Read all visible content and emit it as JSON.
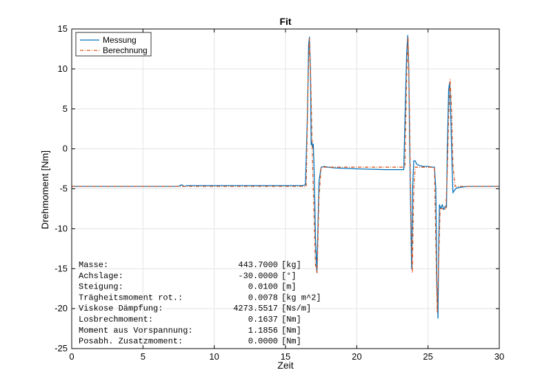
{
  "chart_data": {
    "type": "line",
    "title": "Fit",
    "xlabel": "Zeit",
    "ylabel": "Drehmoment [Nm]",
    "xlim": [
      0,
      30
    ],
    "ylim": [
      -25,
      15
    ],
    "xticks": [
      0,
      5,
      10,
      15,
      20,
      25,
      30
    ],
    "yticks": [
      15,
      10,
      5,
      0,
      -5,
      -10,
      -15,
      -20,
      -25
    ],
    "grid": true,
    "legend_position": "top-left",
    "series": [
      {
        "name": "Messung",
        "color": "#0072BD",
        "style": "solid",
        "x": [
          0,
          7.5,
          7.7,
          7.9,
          8.1,
          16.2,
          16.4,
          16.55,
          16.62,
          16.68,
          16.75,
          16.8,
          16.85,
          16.9,
          16.95,
          17.0,
          17.05,
          17.1,
          17.2,
          17.35,
          17.5,
          17.7,
          18.0,
          18.5,
          20.0,
          22.0,
          23.0,
          23.3,
          23.4,
          23.5,
          23.58,
          23.65,
          23.7,
          23.78,
          23.85,
          23.92,
          24.0,
          24.1,
          24.2,
          24.4,
          24.7,
          25.0,
          25.3,
          25.45,
          25.55,
          25.62,
          25.7,
          25.75,
          25.8,
          25.9,
          26.0,
          26.1,
          26.2,
          26.3,
          26.35,
          26.45,
          26.52,
          26.6,
          26.7,
          26.75,
          26.85,
          27.0,
          27.3,
          27.8,
          28.5,
          30
        ],
        "y": [
          -4.7,
          -4.7,
          -4.5,
          -4.7,
          -4.6,
          -4.6,
          -4.5,
          5.0,
          13.0,
          14.0,
          10.0,
          0.5,
          0.8,
          0.2,
          0.6,
          -2.0,
          -6.0,
          -11.0,
          -15.5,
          -4.0,
          -2.3,
          -2.2,
          -2.3,
          -2.4,
          -2.5,
          -2.6,
          -2.6,
          -2.6,
          5.0,
          12.0,
          14.2,
          10.0,
          2.0,
          -8.0,
          -15.0,
          -5.0,
          -1.5,
          -1.5,
          -1.9,
          -2.1,
          -2.2,
          -2.2,
          -2.3,
          -2.3,
          -5.0,
          -17.0,
          -21.2,
          -12.0,
          -7.0,
          -7.5,
          -7.0,
          -7.6,
          -7.2,
          -7.3,
          0.0,
          7.5,
          8.3,
          4.0,
          -3.0,
          -5.5,
          -5.2,
          -4.9,
          -4.8,
          -4.7,
          -4.7,
          -4.7
        ]
      },
      {
        "name": "Berechnung",
        "color": "#D95319",
        "style": "dashdot",
        "x": [
          0,
          16.2,
          16.45,
          16.58,
          16.68,
          16.78,
          16.9,
          17.0,
          17.1,
          17.22,
          17.35,
          17.5,
          17.7,
          23.0,
          23.38,
          23.5,
          23.6,
          23.7,
          23.8,
          23.9,
          24.0,
          24.1,
          24.2,
          25.3,
          25.45,
          25.55,
          25.65,
          25.75,
          25.85,
          26.0,
          26.25,
          26.35,
          26.45,
          26.55,
          26.65,
          26.75,
          26.9,
          30
        ],
        "y": [
          -4.7,
          -4.7,
          -4.7,
          8.0,
          13.8,
          8.0,
          -2.0,
          -8.0,
          -14.5,
          -15.5,
          -6.0,
          -2.3,
          -2.3,
          -2.3,
          -2.3,
          9.0,
          14.0,
          5.0,
          -9.0,
          -15.5,
          -5.0,
          -2.3,
          -2.3,
          -2.3,
          -2.3,
          -12.0,
          -20.5,
          -14.0,
          -7.5,
          -7.5,
          -7.6,
          -3.0,
          4.0,
          8.7,
          5.0,
          -2.0,
          -4.7,
          -4.7
        ]
      }
    ],
    "annotation_rows": [
      {
        "label": "Masse:",
        "value": "443.7000",
        "unit": "[kg]"
      },
      {
        "label": "Achslage:",
        "value": "-30.0000",
        "unit": "[°]"
      },
      {
        "label": "Steigung:",
        "value": "0.0100",
        "unit": "[m]"
      },
      {
        "label": "Trägheitsmoment rot.:",
        "value": "0.0078",
        "unit": "[kg m^2]"
      },
      {
        "label": "Viskose Dämpfung:",
        "value": "4273.5517",
        "unit": "[Ns/m]"
      },
      {
        "label": "Losbrechmoment:",
        "value": "0.1637",
        "unit": "[Nm]"
      },
      {
        "label": "Moment aus Vorspannung:",
        "value": "1.1856",
        "unit": "[Nm]"
      },
      {
        "label": "Posabh. Zusatzmoment:",
        "value": "0.0000",
        "unit": "[Nm]"
      }
    ]
  }
}
